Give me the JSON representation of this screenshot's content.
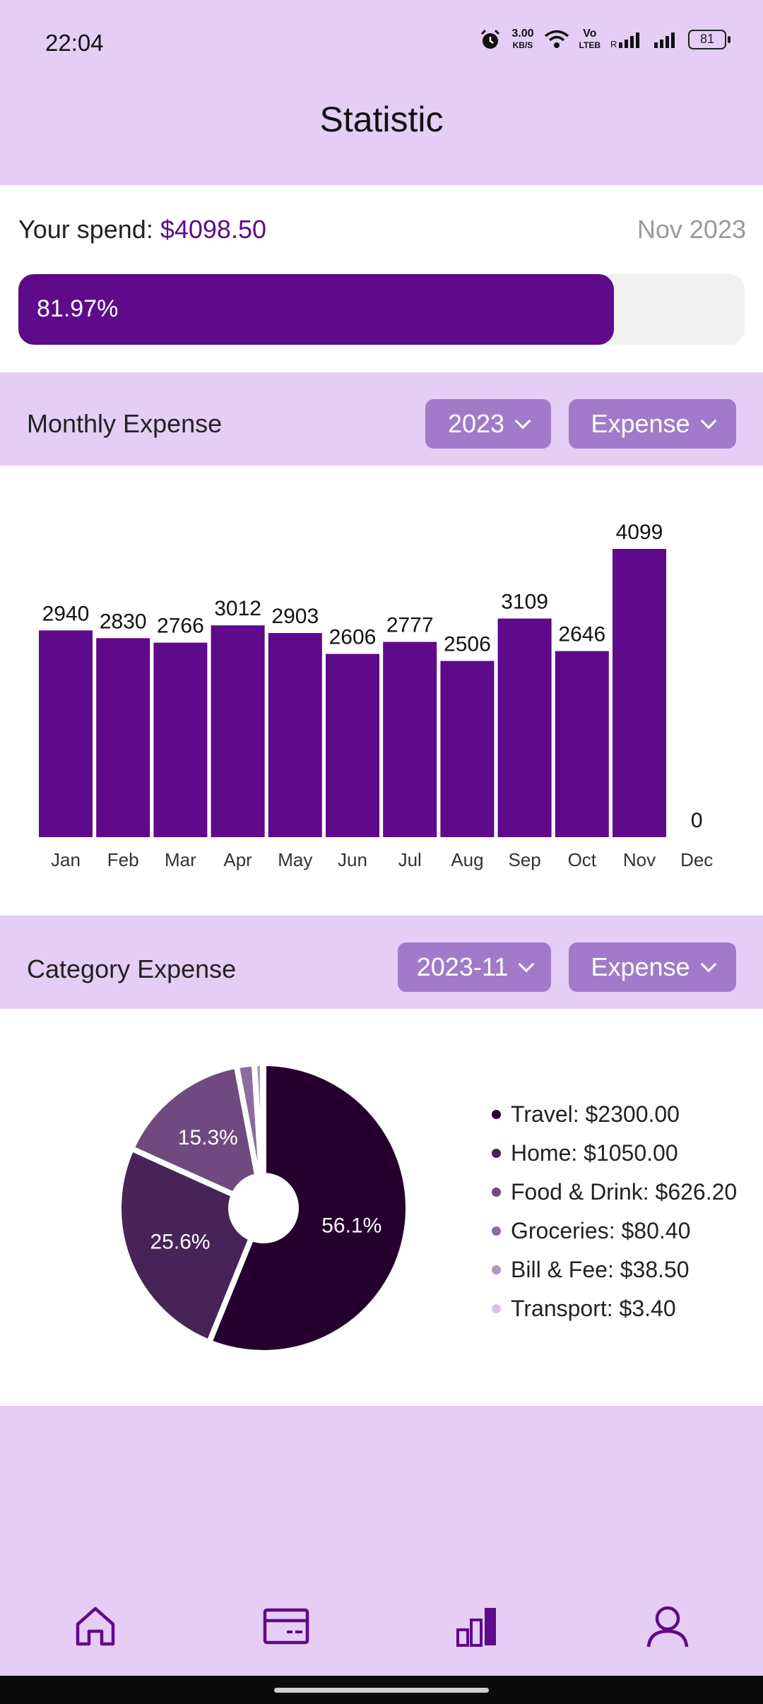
{
  "status": {
    "time": "22:04",
    "net_speed_top": "3.00",
    "net_speed_bottom": "KB/S",
    "volte": "Vo",
    "volte2": "LTEB",
    "battery": "81"
  },
  "header": {
    "title": "Statistic"
  },
  "spend": {
    "label": "Your spend: ",
    "amount": "$4098.50",
    "date": "Nov 2023",
    "progress_label": "81.97%",
    "progress_value": 0.8197
  },
  "monthly": {
    "title": "Monthly Expense",
    "year_select": "2023",
    "type_select": "Expense"
  },
  "chart_data": {
    "type": "bar",
    "categories": [
      "Jan",
      "Feb",
      "Mar",
      "Apr",
      "May",
      "Jun",
      "Jul",
      "Aug",
      "Sep",
      "Oct",
      "Nov",
      "Dec"
    ],
    "values": [
      2940,
      2830,
      2766,
      3012,
      2903,
      2606,
      2777,
      2506,
      3109,
      2646,
      4099,
      0
    ],
    "bar_color": "#5e0a8a"
  },
  "category": {
    "title": "Category Expense",
    "month_select": "2023-11",
    "type_select": "Expense",
    "pie": [
      {
        "label": "56.1%",
        "value": 2300.0,
        "color": "#25002f"
      },
      {
        "label": "25.6%",
        "value": 1050.0,
        "color": "#472458"
      },
      {
        "label": "15.3%",
        "value": 626.2,
        "color": "#6f4a80"
      },
      {
        "label": "",
        "value": 80.4,
        "color": "#8e6b9e"
      },
      {
        "label": "",
        "value": 38.5,
        "color": "#b196bd"
      },
      {
        "label": "",
        "value": 3.4,
        "color": "#d9c3e3"
      }
    ],
    "legend": [
      {
        "text": "Travel: $2300.00",
        "color": "#25002f"
      },
      {
        "text": "Home: $1050.00",
        "color": "#472458"
      },
      {
        "text": "Food & Drink: $626.20",
        "color": "#6f4a80"
      },
      {
        "text": "Groceries: $80.40",
        "color": "#8e6b9e"
      },
      {
        "text": "Bill & Fee: $38.50",
        "color": "#b196bd"
      },
      {
        "text": "Transport: $3.40",
        "color": "#d9c3e3"
      }
    ]
  },
  "nav": {
    "items": [
      "home-icon",
      "card-icon",
      "stats-icon",
      "profile-icon"
    ],
    "active": "stats-icon",
    "color": "#5e0a8a"
  }
}
